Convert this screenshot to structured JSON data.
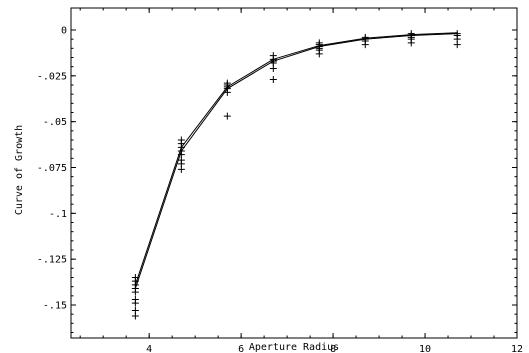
{
  "chart_data": {
    "type": "scatter",
    "title": "",
    "xlabel": "Aperture Radius",
    "ylabel": "Curve of Growth",
    "xlim": [
      2.3,
      12
    ],
    "ylim": [
      -0.168,
      0.012
    ],
    "x_ticks": [
      4,
      6,
      8,
      10,
      12
    ],
    "x_tick_labels": [
      "4",
      "6",
      "8",
      "10",
      "12"
    ],
    "y_ticks": [
      0,
      -0.025,
      -0.05,
      -0.075,
      -0.1,
      -0.125,
      -0.15
    ],
    "y_tick_labels": [
      "0",
      "-.025",
      "-.05",
      "-.075",
      "-.1",
      "-.125",
      "-.15"
    ],
    "grid": false,
    "series": [
      {
        "marker": "plus",
        "points": [
          {
            "x": 3.7,
            "y": -0.135
          },
          {
            "x": 3.7,
            "y": -0.137
          },
          {
            "x": 3.7,
            "y": -0.139
          },
          {
            "x": 3.7,
            "y": -0.141
          },
          {
            "x": 3.7,
            "y": -0.143
          },
          {
            "x": 3.7,
            "y": -0.147
          },
          {
            "x": 3.7,
            "y": -0.149
          },
          {
            "x": 3.7,
            "y": -0.153
          },
          {
            "x": 3.7,
            "y": -0.156
          },
          {
            "x": 4.7,
            "y": -0.06
          },
          {
            "x": 4.7,
            "y": -0.062
          },
          {
            "x": 4.7,
            "y": -0.064
          },
          {
            "x": 4.7,
            "y": -0.066
          },
          {
            "x": 4.7,
            "y": -0.068
          },
          {
            "x": 4.7,
            "y": -0.071
          },
          {
            "x": 4.7,
            "y": -0.073
          },
          {
            "x": 4.7,
            "y": -0.076
          },
          {
            "x": 5.7,
            "y": -0.029
          },
          {
            "x": 5.7,
            "y": -0.03
          },
          {
            "x": 5.7,
            "y": -0.031
          },
          {
            "x": 5.7,
            "y": -0.032
          },
          {
            "x": 5.7,
            "y": -0.034
          },
          {
            "x": 5.7,
            "y": -0.047
          },
          {
            "x": 6.7,
            "y": -0.014
          },
          {
            "x": 6.7,
            "y": -0.016
          },
          {
            "x": 6.7,
            "y": -0.017
          },
          {
            "x": 6.7,
            "y": -0.018
          },
          {
            "x": 6.7,
            "y": -0.021
          },
          {
            "x": 6.7,
            "y": -0.027
          },
          {
            "x": 7.7,
            "y": -0.007
          },
          {
            "x": 7.7,
            "y": -0.008
          },
          {
            "x": 7.7,
            "y": -0.009
          },
          {
            "x": 7.7,
            "y": -0.01
          },
          {
            "x": 7.7,
            "y": -0.011
          },
          {
            "x": 7.7,
            "y": -0.013
          },
          {
            "x": 8.7,
            "y": -0.004
          },
          {
            "x": 8.7,
            "y": -0.005
          },
          {
            "x": 8.7,
            "y": -0.006
          },
          {
            "x": 8.7,
            "y": -0.008
          },
          {
            "x": 9.7,
            "y": -0.002
          },
          {
            "x": 9.7,
            "y": -0.003
          },
          {
            "x": 9.7,
            "y": -0.004
          },
          {
            "x": 9.7,
            "y": -0.005
          },
          {
            "x": 9.7,
            "y": -0.007
          },
          {
            "x": 10.7,
            "y": -0.002
          },
          {
            "x": 10.7,
            "y": -0.003
          },
          {
            "x": 10.7,
            "y": -0.005
          },
          {
            "x": 10.7,
            "y": -0.008
          }
        ]
      },
      {
        "marker": "line",
        "x": [
          3.7,
          4.7,
          5.7,
          6.7,
          7.7,
          8.7,
          9.7,
          10.7
        ],
        "y": [
          -0.141,
          -0.066,
          -0.032,
          -0.017,
          -0.009,
          -0.005,
          -0.003,
          -0.002
        ]
      },
      {
        "marker": "line",
        "x": [
          3.7,
          4.7,
          5.7,
          6.7,
          7.7,
          8.7,
          9.7,
          10.7
        ],
        "y": [
          -0.139,
          -0.064,
          -0.031,
          -0.016,
          -0.0085,
          -0.0045,
          -0.0025,
          -0.0015
        ]
      }
    ]
  }
}
